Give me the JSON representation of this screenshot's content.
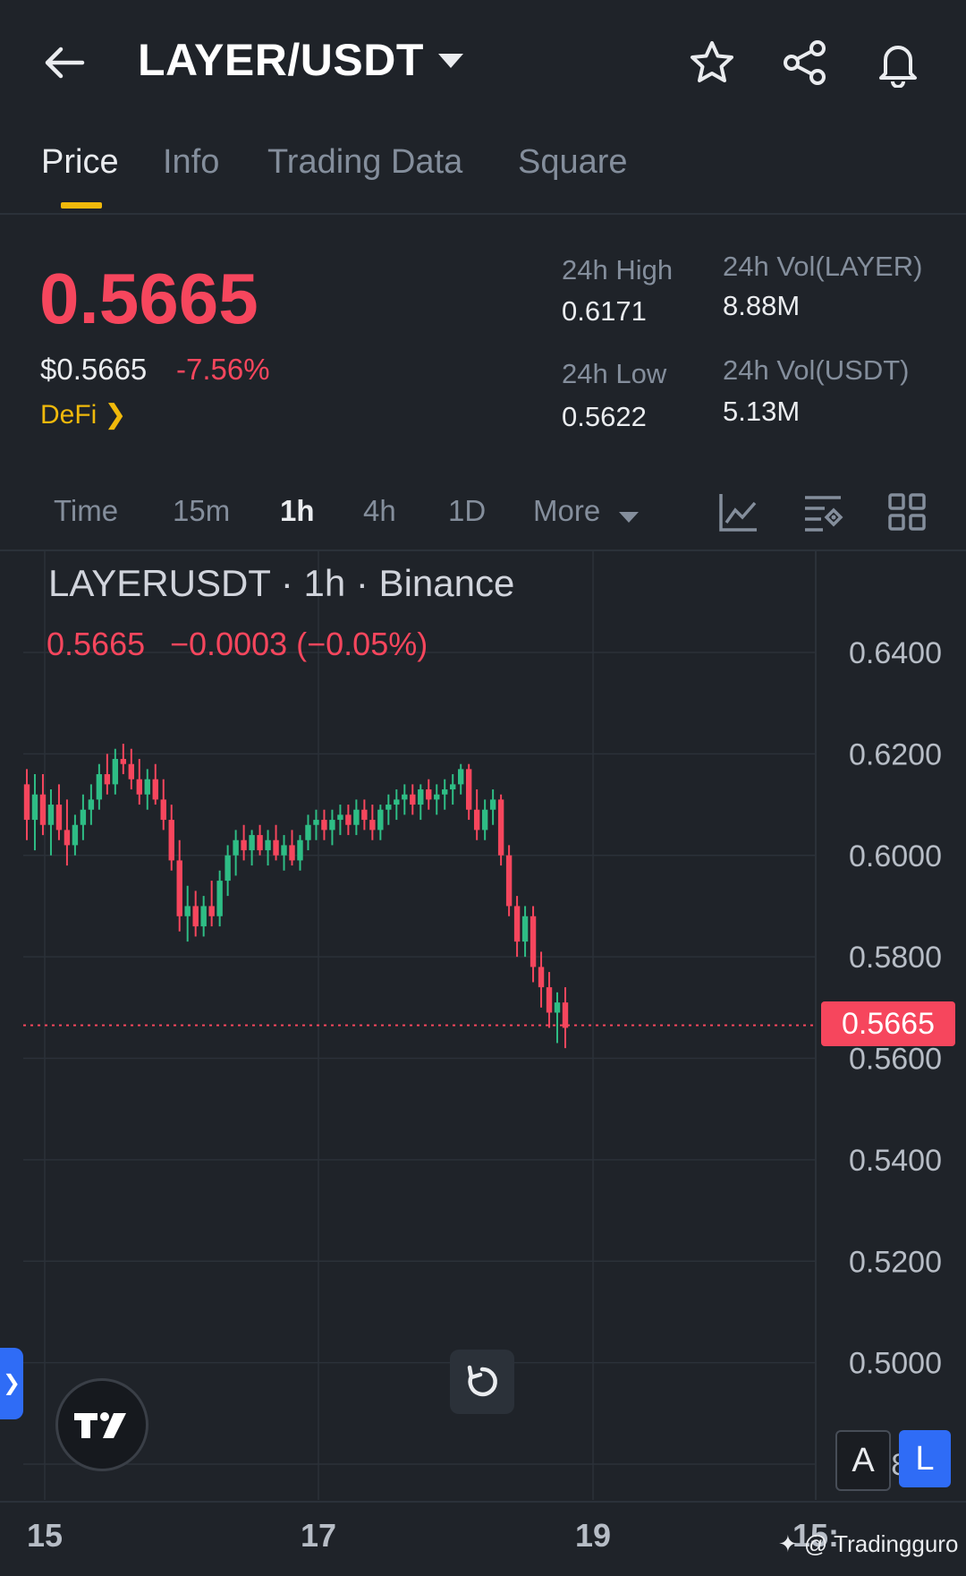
{
  "header": {
    "pair": "LAYER/USDT"
  },
  "tabs": [
    {
      "label": "Price",
      "active": true
    },
    {
      "label": "Info"
    },
    {
      "label": "Trading Data"
    },
    {
      "label": "Square"
    }
  ],
  "ticker": {
    "last_price": "0.5665",
    "usd_price": "$0.5665",
    "change_pct": "-7.56%",
    "category": "DeFi",
    "high_label": "24h High",
    "high_value": "0.6171",
    "low_label": "24h Low",
    "low_value": "0.5622",
    "vol_base_label": "24h Vol(LAYER)",
    "vol_base_value": "8.88M",
    "vol_quote_label": "24h Vol(USDT)",
    "vol_quote_value": "5.13M"
  },
  "intervals": [
    {
      "label": "Time"
    },
    {
      "label": "15m"
    },
    {
      "label": "1h",
      "active": true
    },
    {
      "label": "4h"
    },
    {
      "label": "1D"
    },
    {
      "label": "More"
    }
  ],
  "colors": {
    "up": "#2ebd85",
    "down": "#f6465d",
    "accent": "#f0b90b",
    "bg": "#1f2329"
  },
  "chart_data": {
    "type": "candlestick",
    "title": "LAYERUSDT · 1h · Binance",
    "legend_last": "0.5665",
    "legend_change": "−0.0003 (−0.05%)",
    "y_ticks": [
      "0.6400",
      "0.6200",
      "0.6000",
      "0.5800",
      "0.5600",
      "0.5400",
      "0.5200",
      "0.5000",
      "0.4800"
    ],
    "ylim": [
      0.465,
      0.655
    ],
    "x_ticks": [
      "15",
      "17",
      "19",
      "15:"
    ],
    "current_price": 0.5665,
    "current_price_label": "0.5665",
    "ohlc": [
      [
        0.614,
        0.617,
        0.603,
        0.607
      ],
      [
        0.607,
        0.616,
        0.601,
        0.612
      ],
      [
        0.612,
        0.616,
        0.604,
        0.606
      ],
      [
        0.606,
        0.613,
        0.6,
        0.61
      ],
      [
        0.61,
        0.614,
        0.603,
        0.605
      ],
      [
        0.605,
        0.611,
        0.598,
        0.602
      ],
      [
        0.602,
        0.608,
        0.6,
        0.606
      ],
      [
        0.606,
        0.612,
        0.603,
        0.609
      ],
      [
        0.609,
        0.614,
        0.606,
        0.611
      ],
      [
        0.611,
        0.618,
        0.609,
        0.616
      ],
      [
        0.616,
        0.62,
        0.612,
        0.614
      ],
      [
        0.614,
        0.621,
        0.612,
        0.619
      ],
      [
        0.619,
        0.622,
        0.616,
        0.618
      ],
      [
        0.618,
        0.621,
        0.613,
        0.615
      ],
      [
        0.615,
        0.619,
        0.61,
        0.612
      ],
      [
        0.612,
        0.617,
        0.609,
        0.615
      ],
      [
        0.615,
        0.618,
        0.61,
        0.611
      ],
      [
        0.611,
        0.615,
        0.605,
        0.607
      ],
      [
        0.607,
        0.61,
        0.597,
        0.599
      ],
      [
        0.599,
        0.603,
        0.585,
        0.588
      ],
      [
        0.588,
        0.594,
        0.583,
        0.59
      ],
      [
        0.59,
        0.593,
        0.584,
        0.586
      ],
      [
        0.586,
        0.592,
        0.584,
        0.59
      ],
      [
        0.59,
        0.595,
        0.586,
        0.588
      ],
      [
        0.588,
        0.597,
        0.586,
        0.595
      ],
      [
        0.595,
        0.602,
        0.592,
        0.6
      ],
      [
        0.6,
        0.605,
        0.596,
        0.603
      ],
      [
        0.603,
        0.606,
        0.599,
        0.601
      ],
      [
        0.601,
        0.605,
        0.598,
        0.604
      ],
      [
        0.604,
        0.606,
        0.6,
        0.601
      ],
      [
        0.601,
        0.605,
        0.598,
        0.603
      ],
      [
        0.603,
        0.606,
        0.599,
        0.6
      ],
      [
        0.6,
        0.604,
        0.597,
        0.602
      ],
      [
        0.602,
        0.605,
        0.598,
        0.599
      ],
      [
        0.599,
        0.604,
        0.597,
        0.603
      ],
      [
        0.603,
        0.608,
        0.601,
        0.606
      ],
      [
        0.606,
        0.609,
        0.603,
        0.607
      ],
      [
        0.607,
        0.609,
        0.603,
        0.605
      ],
      [
        0.605,
        0.609,
        0.602,
        0.607
      ],
      [
        0.607,
        0.61,
        0.604,
        0.608
      ],
      [
        0.608,
        0.61,
        0.604,
        0.606
      ],
      [
        0.606,
        0.611,
        0.604,
        0.609
      ],
      [
        0.609,
        0.611,
        0.605,
        0.607
      ],
      [
        0.607,
        0.61,
        0.603,
        0.605
      ],
      [
        0.605,
        0.61,
        0.603,
        0.609
      ],
      [
        0.609,
        0.612,
        0.606,
        0.61
      ],
      [
        0.61,
        0.613,
        0.607,
        0.611
      ],
      [
        0.611,
        0.614,
        0.608,
        0.612
      ],
      [
        0.612,
        0.614,
        0.608,
        0.61
      ],
      [
        0.61,
        0.614,
        0.607,
        0.613
      ],
      [
        0.613,
        0.615,
        0.609,
        0.611
      ],
      [
        0.611,
        0.614,
        0.608,
        0.612
      ],
      [
        0.612,
        0.615,
        0.609,
        0.613
      ],
      [
        0.613,
        0.616,
        0.61,
        0.614
      ],
      [
        0.614,
        0.618,
        0.612,
        0.617
      ],
      [
        0.617,
        0.618,
        0.607,
        0.609
      ],
      [
        0.609,
        0.613,
        0.603,
        0.605
      ],
      [
        0.605,
        0.611,
        0.603,
        0.609
      ],
      [
        0.609,
        0.613,
        0.606,
        0.611
      ],
      [
        0.611,
        0.612,
        0.598,
        0.6
      ],
      [
        0.6,
        0.602,
        0.588,
        0.59
      ],
      [
        0.59,
        0.592,
        0.58,
        0.583
      ],
      [
        0.583,
        0.59,
        0.58,
        0.588
      ],
      [
        0.588,
        0.59,
        0.575,
        0.578
      ],
      [
        0.578,
        0.581,
        0.57,
        0.574
      ],
      [
        0.574,
        0.577,
        0.566,
        0.569
      ],
      [
        0.569,
        0.573,
        0.563,
        0.571
      ],
      [
        0.571,
        0.574,
        0.562,
        0.566
      ]
    ]
  },
  "watermark": "@ Tradingguro",
  "buttons": {
    "auto": "A",
    "log": "L",
    "tv_logo": "TV"
  }
}
